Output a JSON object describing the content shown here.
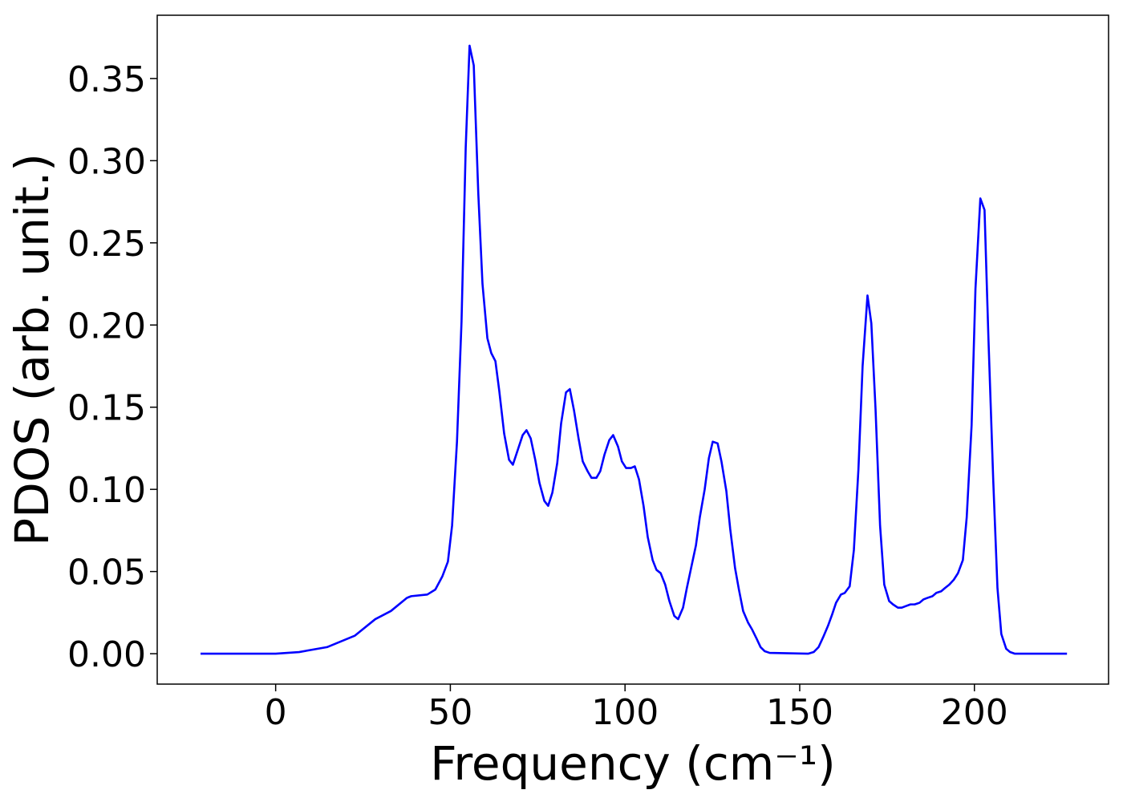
{
  "chart_data": {
    "type": "line",
    "x_label": "Frequency (cm⁻¹)",
    "y_label": "PDOS (arb. unit.)",
    "xlim": [
      -33.9,
      238.4
    ],
    "ylim": [
      -0.0185,
      0.3885
    ],
    "xticks": [
      0,
      50,
      100,
      150,
      200
    ],
    "yticks": [
      {
        "value": 0,
        "label": "0.00"
      },
      {
        "value": 0.05,
        "label": "0.05"
      },
      {
        "value": 0.1,
        "label": "0.10"
      },
      {
        "value": 0.15,
        "label": "0.15"
      },
      {
        "value": 0.2,
        "label": "0.20"
      },
      {
        "value": 0.25,
        "label": "0.25"
      },
      {
        "value": 0.3,
        "label": "0.30"
      },
      {
        "value": 0.35,
        "label": "0.35"
      }
    ],
    "color": "#0000ff",
    "x": [
      -21.5,
      0,
      6.7,
      14.7,
      22.7,
      28.5,
      33,
      37.6,
      38.8,
      43.4,
      45.7,
      47.7,
      49.3,
      50.5,
      51.9,
      53.2,
      54.4,
      55.5,
      56.7,
      58,
      59.2,
      60.6,
      61.7,
      62.9,
      64,
      65.4,
      66.8,
      67.9,
      69.3,
      70.7,
      71.8,
      73,
      74.3,
      75.5,
      76.9,
      78,
      79.2,
      80.6,
      81.7,
      83.1,
      84.2,
      85.4,
      86.7,
      87.9,
      89.3,
      90.4,
      91.8,
      92.9,
      94.1,
      95.5,
      96.6,
      98,
      99.1,
      100.3,
      101.7,
      102.8,
      104,
      105.3,
      106.5,
      107.9,
      109,
      110.2,
      111.5,
      112.7,
      114.1,
      115.2,
      116.6,
      117.7,
      118.9,
      120.3,
      121.4,
      122.8,
      124,
      125.1,
      126.5,
      127.6,
      129,
      130.1,
      131.5,
      132.6,
      133.8,
      135.2,
      136.3,
      137.7,
      138.8,
      140,
      141.4,
      152.4,
      154,
      155.4,
      156.7,
      158.1,
      159.3,
      160.4,
      161.8,
      162.9,
      164.3,
      165.5,
      166.8,
      168,
      169.4,
      170.5,
      171.7,
      173,
      174.2,
      175.6,
      176.7,
      178.1,
      179.2,
      180.4,
      181.7,
      182.9,
      184.3,
      185.4,
      186.6,
      188,
      189.1,
      190.5,
      191.6,
      192.8,
      194.1,
      195.3,
      196.7,
      197.8,
      199.2,
      200.3,
      201.7,
      202.9,
      204,
      205.4,
      206.6,
      207.7,
      209.1,
      210.2,
      211.6,
      226.5
    ],
    "values": [
      0,
      0,
      0.001,
      0.004,
      0.011,
      0.021,
      0.026,
      0.034,
      0.035,
      0.036,
      0.039,
      0.047,
      0.056,
      0.078,
      0.129,
      0.202,
      0.308,
      0.37,
      0.358,
      0.28,
      0.225,
      0.192,
      0.183,
      0.178,
      0.16,
      0.134,
      0.118,
      0.115,
      0.124,
      0.133,
      0.136,
      0.131,
      0.118,
      0.104,
      0.093,
      0.09,
      0.098,
      0.116,
      0.14,
      0.159,
      0.161,
      0.148,
      0.131,
      0.117,
      0.111,
      0.107,
      0.107,
      0.111,
      0.121,
      0.13,
      0.133,
      0.126,
      0.117,
      0.113,
      0.113,
      0.114,
      0.106,
      0.09,
      0.071,
      0.057,
      0.051,
      0.049,
      0.042,
      0.032,
      0.023,
      0.021,
      0.028,
      0.04,
      0.052,
      0.066,
      0.083,
      0.1,
      0.119,
      0.129,
      0.128,
      0.117,
      0.099,
      0.076,
      0.052,
      0.039,
      0.026,
      0.019,
      0.015,
      0.009,
      0.004,
      0.0015,
      0.0005,
      0,
      0.001,
      0.004,
      0.01,
      0.017,
      0.024,
      0.031,
      0.036,
      0.037,
      0.041,
      0.063,
      0.112,
      0.175,
      0.218,
      0.201,
      0.149,
      0.078,
      0.042,
      0.032,
      0.03,
      0.028,
      0.028,
      0.029,
      0.03,
      0.03,
      0.031,
      0.033,
      0.034,
      0.035,
      0.037,
      0.038,
      0.04,
      0.042,
      0.045,
      0.049,
      0.057,
      0.083,
      0.139,
      0.222,
      0.277,
      0.27,
      0.193,
      0.105,
      0.04,
      0.012,
      0.003,
      0.001,
      0,
      0
    ]
  }
}
